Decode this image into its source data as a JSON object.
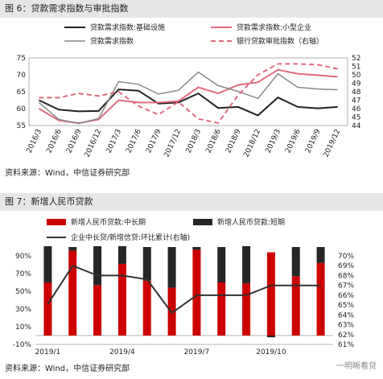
{
  "fig6": {
    "title": "图 6：贷款需求指数与审批指数",
    "source": "资料来源：Wind，中信证券研究部"
  },
  "fig7": {
    "title": "图 7：新增人民币贷款",
    "source": "资料来源：Wind，中信证券研究部"
  },
  "watermark": "一明晰看贷",
  "chart_data": [
    {
      "type": "line",
      "categories": [
        "2016/3",
        "2016/6",
        "2016/9",
        "2016/12",
        "2017/3",
        "2017/6",
        "2017/9",
        "2017/12",
        "2018/3",
        "2018/6",
        "2018/9",
        "2018/12",
        "2019/3",
        "2019/6",
        "2019/9",
        "2019/12"
      ],
      "ylim": [
        55,
        75
      ],
      "yticks": [
        55,
        60,
        65,
        70,
        75
      ],
      "y2lim": [
        44,
        52
      ],
      "y2ticks": [
        44,
        45,
        46,
        47,
        48,
        49,
        50,
        51,
        52
      ],
      "legend_position": "top",
      "series": [
        {
          "name": "贷款需求指数:基础设施",
          "axis": "left",
          "color": "#222222",
          "dash": "",
          "width": 2,
          "values": [
            62.5,
            59.7,
            59.2,
            59.3,
            65.7,
            65.3,
            61.5,
            61.8,
            64.5,
            60.2,
            60.5,
            58.0,
            63.3,
            60.5,
            60.1,
            60.5
          ]
        },
        {
          "name": "贷款需求指数:小型企业",
          "axis": "left",
          "color": "#e06a7e",
          "dash": "",
          "width": 2,
          "values": [
            60.0,
            56.5,
            55.7,
            56.8,
            62.5,
            61.8,
            61.8,
            62.2,
            66.3,
            64.5,
            67.0,
            67.8,
            71.5,
            70.3,
            69.9,
            69.4
          ]
        },
        {
          "name": "贷款需求指数",
          "axis": "left",
          "color": "#888888",
          "dash": "",
          "width": 1.5,
          "values": [
            61.8,
            56.8,
            55.6,
            57.1,
            68.0,
            67.2,
            64.3,
            65.4,
            70.8,
            66.8,
            65.1,
            63.0,
            70.3,
            66.3,
            65.8,
            65.6
          ]
        },
        {
          "name": "银行贷款审批指数（右轴）",
          "axis": "right",
          "color": "#e06a7e",
          "dash": "6,4",
          "width": 2,
          "values": [
            47.3,
            47.3,
            47.8,
            47.5,
            48.0,
            46.3,
            45.3,
            46.8,
            44.8,
            44.3,
            47.6,
            50.0,
            51.3,
            51.3,
            51.2,
            50.7
          ]
        }
      ]
    },
    {
      "type": "bar",
      "categories": [
        "2019/1",
        "2019/2",
        "2019/3",
        "2019/4",
        "2019/5",
        "2019/6",
        "2019/7",
        "2019/8",
        "2019/9",
        "2019/10",
        "2019/11",
        "2019/12"
      ],
      "xtick_labels": [
        "2019/1",
        "",
        "",
        "2019/4",
        "",
        "",
        "2019/7",
        "",
        "",
        "2019/10",
        "",
        ""
      ],
      "ylim": [
        -10,
        90
      ],
      "yticks": [
        -10,
        10,
        30,
        50,
        70,
        90
      ],
      "y2lim": [
        61,
        70
      ],
      "y2ticks": [
        61,
        62,
        63,
        64,
        65,
        66,
        67,
        68,
        69,
        70
      ],
      "series": [
        {
          "name": "新增人民币贷款:中长期",
          "type": "bar",
          "color": "#cc0000",
          "values": [
            60,
            96,
            57,
            81,
            62,
            54,
            97,
            60,
            59,
            94,
            67,
            82
          ]
        },
        {
          "name": "新增人民币贷款:短期",
          "type": "bar",
          "color": "#262626",
          "values": [
            41,
            4,
            44,
            20,
            38,
            46,
            3,
            40,
            42,
            -2,
            33,
            18
          ]
        },
        {
          "name": "企业中长贷/新增信贷:环比累计(右轴)",
          "type": "line",
          "axis": "right",
          "color": "#333333",
          "values": [
            65.1,
            69.0,
            68.0,
            68.0,
            67.6,
            64.2,
            66.0,
            66.0,
            66.0,
            67.0,
            67.0,
            67.0
          ]
        }
      ]
    }
  ]
}
